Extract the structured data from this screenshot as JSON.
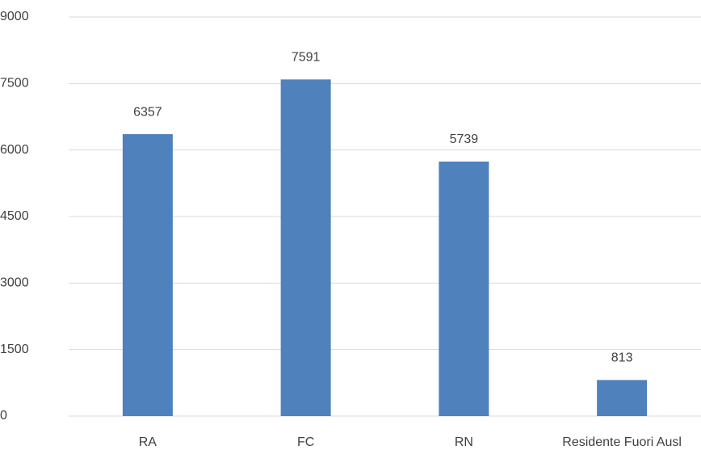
{
  "chart_data": {
    "type": "bar",
    "categories": [
      "RA",
      "FC",
      "RN",
      "Residente Fuori Ausl"
    ],
    "values": [
      6357,
      7591,
      5739,
      813
    ],
    "color": "#4f81bd",
    "ylim": [
      0,
      9000
    ],
    "yticks": [
      0,
      1500,
      3000,
      4500,
      6000,
      7500,
      9000
    ],
    "grid": true
  }
}
